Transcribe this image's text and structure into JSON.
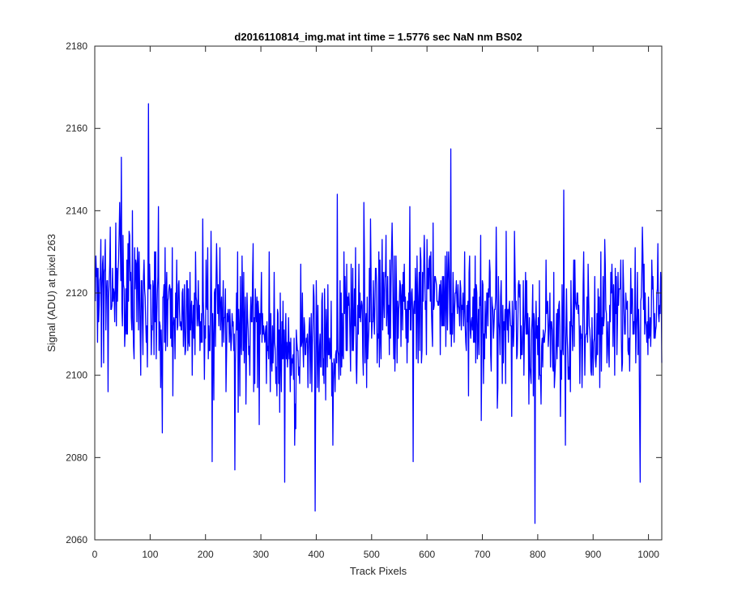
{
  "chart_data": {
    "type": "line",
    "title": "d2016110814_img.mat int time = 1.5776 sec  NaN nm BS02",
    "xlabel": "Track Pixels",
    "ylabel": "Signal (ADU) at pixel 263",
    "xlim": [
      0,
      1024
    ],
    "ylim": [
      2060,
      2180
    ],
    "xticks": [
      "0",
      "100",
      "200",
      "300",
      "400",
      "500",
      "600",
      "700",
      "800",
      "900",
      "1000"
    ],
    "yticks": [
      "2060",
      "2080",
      "2100",
      "2120",
      "2140",
      "2160",
      "2180"
    ],
    "grid": false,
    "legend": "none",
    "line_color": "#0000ff",
    "series": [
      {
        "baseline": [
          [
            0,
            2123
          ],
          [
            50,
            2121
          ],
          [
            100,
            2120
          ],
          [
            150,
            2117
          ],
          [
            200,
            2117
          ],
          [
            250,
            2110
          ],
          [
            300,
            2110
          ],
          [
            350,
            2107
          ],
          [
            400,
            2106
          ],
          [
            450,
            2113
          ],
          [
            500,
            2117
          ],
          [
            550,
            2119
          ],
          [
            600,
            2120
          ],
          [
            650,
            2117
          ],
          [
            700,
            2116
          ],
          [
            750,
            2113
          ],
          [
            800,
            2108
          ],
          [
            850,
            2111
          ],
          [
            900,
            2113
          ],
          [
            950,
            2114
          ],
          [
            1024,
            2115
          ]
        ],
        "extremes": [
          [
            97,
            2166
          ],
          [
            48,
            2153
          ],
          [
            643,
            2155
          ],
          [
            847,
            2145
          ],
          [
            438,
            2144
          ],
          [
            122,
            2086
          ],
          [
            212,
            2079
          ],
          [
            253,
            2077
          ],
          [
            343,
            2074
          ],
          [
            398,
            2067
          ],
          [
            575,
            2079
          ],
          [
            795,
            2064
          ],
          [
            985,
            2074
          ]
        ]
      }
    ]
  }
}
